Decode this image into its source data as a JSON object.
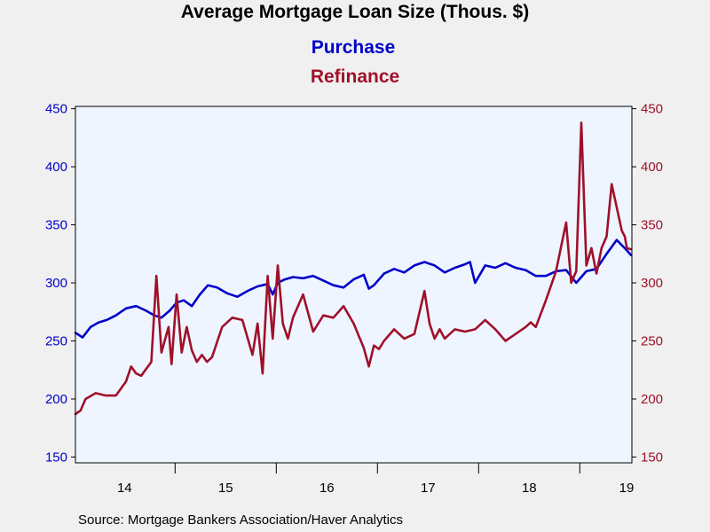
{
  "title": "Average Mortgage Loan Size (Thous. $)",
  "source": "Source:  Mortgage Bankers Association/Haver Analytics",
  "colors": {
    "purchase": "#0000c8",
    "refinance": "#a0102a",
    "plot_background": "#eef5ff",
    "page_background": "#f0f0f0"
  },
  "chart_data": {
    "type": "line",
    "title": "Average Mortgage Loan Size (Thous. $)",
    "xlabel": "",
    "ylabel": "",
    "x_ticks": [
      "14",
      "15",
      "16",
      "17",
      "18",
      "19"
    ],
    "xlim": [
      2013.55,
      2019.05
    ],
    "ylim": [
      145,
      452
    ],
    "y_ticks": [
      150,
      200,
      250,
      300,
      350,
      400,
      450
    ],
    "y_ticks_right": [
      150,
      200,
      250,
      300,
      350,
      400,
      450
    ],
    "grid": false,
    "legend": "top-center",
    "series": [
      {
        "name": "Purchase",
        "axis": "left",
        "x": [
          2013.55,
          2013.62,
          2013.7,
          2013.78,
          2013.86,
          2013.95,
          2014.05,
          2014.15,
          2014.25,
          2014.33,
          2014.4,
          2014.48,
          2014.55,
          2014.62,
          2014.7,
          2014.78,
          2014.86,
          2014.95,
          2015.05,
          2015.15,
          2015.25,
          2015.35,
          2015.45,
          2015.5,
          2015.55,
          2015.62,
          2015.7,
          2015.8,
          2015.9,
          2016.0,
          2016.1,
          2016.2,
          2016.3,
          2016.4,
          2016.45,
          2016.5,
          2016.6,
          2016.7,
          2016.8,
          2016.9,
          2017.0,
          2017.1,
          2017.2,
          2017.3,
          2017.4,
          2017.45,
          2017.5,
          2017.6,
          2017.7,
          2017.8,
          2017.9,
          2018.0,
          2018.1,
          2018.2,
          2018.3,
          2018.4,
          2018.5,
          2018.6,
          2018.7,
          2018.8,
          2018.9,
          2019.0,
          2019.04
        ],
        "values": [
          257,
          253,
          262,
          266,
          268,
          272,
          278,
          280,
          276,
          272,
          270,
          276,
          283,
          285,
          280,
          290,
          298,
          296,
          291,
          288,
          293,
          297,
          299,
          290,
          300,
          303,
          305,
          304,
          306,
          302,
          298,
          296,
          303,
          307,
          295,
          298,
          308,
          312,
          309,
          315,
          318,
          315,
          309,
          313,
          316,
          318,
          300,
          315,
          313,
          317,
          313,
          311,
          306,
          306,
          310,
          311,
          300,
          310,
          312,
          325,
          337,
          328,
          324
        ]
      },
      {
        "name": "Refinance",
        "axis": "right",
        "x": [
          2013.55,
          2013.6,
          2013.65,
          2013.75,
          2013.85,
          2013.95,
          2014.05,
          2014.1,
          2014.15,
          2014.2,
          2014.3,
          2014.35,
          2014.4,
          2014.47,
          2014.5,
          2014.55,
          2014.6,
          2014.65,
          2014.7,
          2014.75,
          2014.8,
          2014.85,
          2014.9,
          2015.0,
          2015.1,
          2015.2,
          2015.3,
          2015.35,
          2015.4,
          2015.45,
          2015.5,
          2015.55,
          2015.6,
          2015.65,
          2015.7,
          2015.8,
          2015.9,
          2016.0,
          2016.1,
          2016.2,
          2016.3,
          2016.4,
          2016.45,
          2016.5,
          2016.55,
          2016.6,
          2016.7,
          2016.8,
          2016.9,
          2017.0,
          2017.05,
          2017.1,
          2017.15,
          2017.2,
          2017.3,
          2017.4,
          2017.5,
          2017.6,
          2017.7,
          2017.8,
          2017.9,
          2018.0,
          2018.05,
          2018.1,
          2018.2,
          2018.3,
          2018.4,
          2018.45,
          2018.5,
          2018.55,
          2018.6,
          2018.65,
          2018.7,
          2018.75,
          2018.8,
          2018.85,
          2018.9,
          2018.95,
          2018.98,
          2019.0,
          2019.04
        ],
        "values": [
          187,
          190,
          200,
          205,
          203,
          203,
          215,
          228,
          222,
          220,
          232,
          306,
          240,
          262,
          230,
          290,
          240,
          262,
          242,
          232,
          238,
          232,
          236,
          262,
          270,
          268,
          238,
          265,
          222,
          306,
          252,
          315,
          265,
          252,
          270,
          290,
          258,
          272,
          270,
          280,
          265,
          244,
          228,
          246,
          243,
          250,
          260,
          252,
          256,
          293,
          265,
          252,
          260,
          252,
          260,
          258,
          260,
          268,
          260,
          250,
          256,
          262,
          266,
          262,
          285,
          310,
          352,
          300,
          310,
          438,
          315,
          330,
          308,
          330,
          340,
          385,
          365,
          345,
          340,
          330,
          329
        ]
      }
    ]
  }
}
